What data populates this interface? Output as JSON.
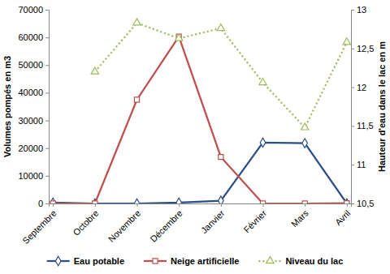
{
  "chart_data": {
    "type": "line",
    "categories": [
      "Septembre",
      "Octobre",
      "Novembre",
      "Décembre",
      "Janvier",
      "Février",
      "Mars",
      "Avril"
    ],
    "series": [
      {
        "name": "Eau potable",
        "color": "#2c4f8a",
        "marker": "diamond",
        "line_style": "solid",
        "values": [
          300,
          0,
          0,
          300,
          1000,
          22000,
          21800,
          0
        ]
      },
      {
        "name": "Neige artificielle",
        "color": "#c0504d",
        "marker": "square",
        "line_style": "solid",
        "values": [
          0,
          0,
          37500,
          60300,
          16800,
          0,
          0,
          100
        ]
      },
      {
        "name": "Niveau du lac",
        "color": "#9bbb59",
        "marker": "triangle",
        "line_style": "dotted",
        "axis": "y2",
        "values": [
          null,
          12.2,
          12.83,
          12.63,
          12.76,
          12.06,
          11.48,
          12.58
        ]
      }
    ],
    "y_label": "Volumes pompés en m3",
    "y2_label": "Hauteur d'eau dans le lac en m",
    "ylim": [
      0,
      70000
    ],
    "yticks": [
      0,
      10000,
      20000,
      30000,
      40000,
      50000,
      60000,
      70000
    ],
    "y2lim": [
      10.5,
      13
    ],
    "y2ticks": [
      {
        "value": 10.5,
        "label": "10,5"
      },
      11,
      {
        "value": 11.5,
        "label": "11,5"
      },
      12,
      {
        "value": 12.5,
        "label": "12,5"
      },
      13
    ],
    "grid": false,
    "legend": "bottom"
  }
}
